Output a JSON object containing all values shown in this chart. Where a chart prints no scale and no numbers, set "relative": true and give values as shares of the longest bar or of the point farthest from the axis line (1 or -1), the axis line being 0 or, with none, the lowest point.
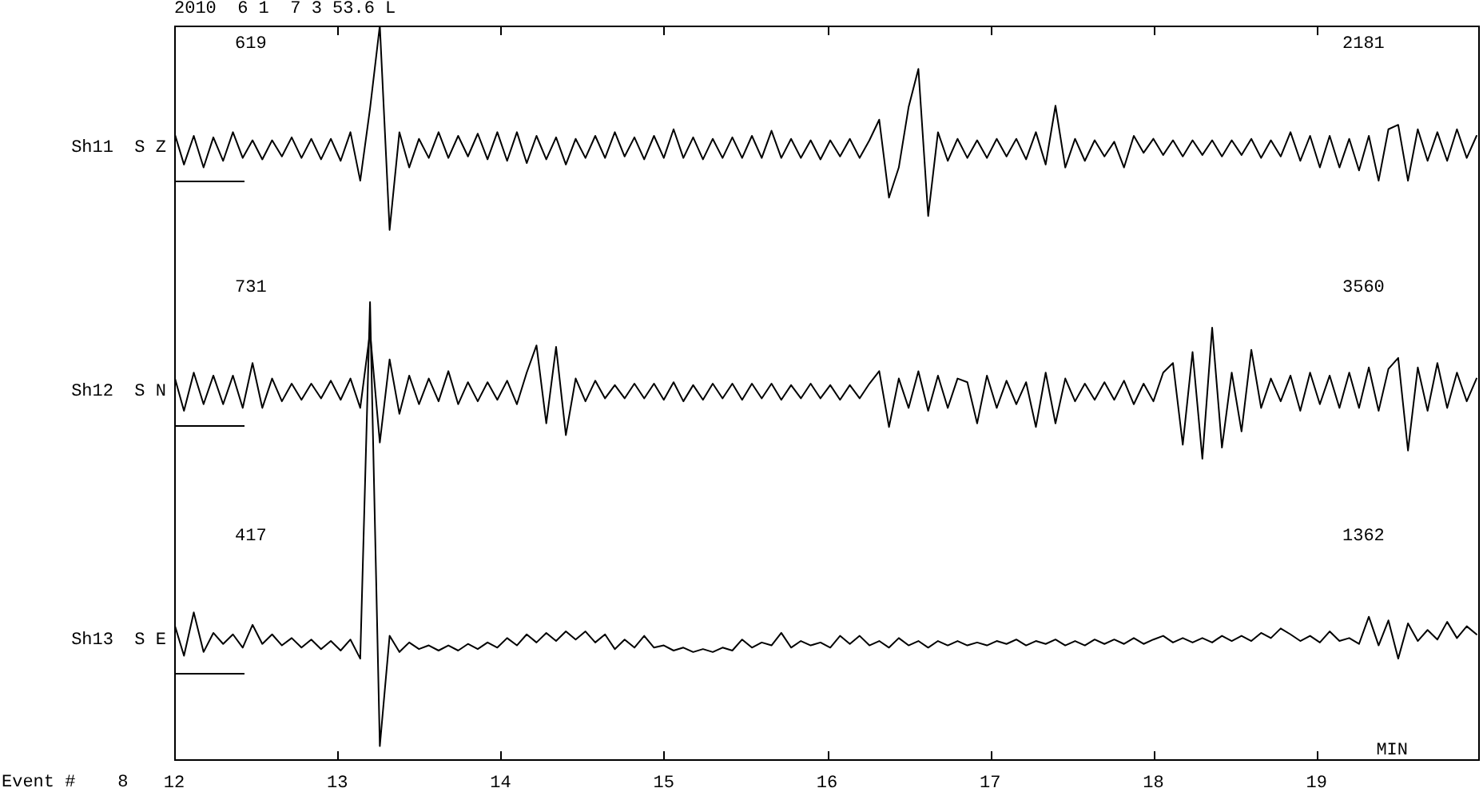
{
  "chart_data": {
    "type": "line",
    "title": "2010  6 1  7 3 53.6 L",
    "xlabel": "MIN",
    "relative": true,
    "marker": "none",
    "xlim": [
      12,
      20
    ],
    "xticks": [
      12,
      13,
      14,
      15,
      16,
      17,
      18,
      19
    ],
    "x": [
      12,
      12.06,
      12.12,
      12.18,
      12.24,
      12.3,
      12.36,
      12.42,
      12.48,
      12.54,
      12.6,
      12.66,
      12.72,
      12.78,
      12.84,
      12.9,
      12.96,
      13.02,
      13.08,
      13.14,
      13.2,
      13.26,
      13.32,
      13.38,
      13.44,
      13.5,
      13.56,
      13.62,
      13.68,
      13.74,
      13.8,
      13.86,
      13.92,
      13.98,
      14.04,
      14.1,
      14.16,
      14.22,
      14.28,
      14.34,
      14.4,
      14.46,
      14.52,
      14.58,
      14.64,
      14.7,
      14.76,
      14.82,
      14.88,
      14.94,
      15,
      15.06,
      15.12,
      15.18,
      15.24,
      15.3,
      15.36,
      15.42,
      15.48,
      15.54,
      15.6,
      15.66,
      15.72,
      15.78,
      15.84,
      15.9,
      15.96,
      16.02,
      16.08,
      16.14,
      16.2,
      16.26,
      16.32,
      16.38,
      16.44,
      16.5,
      16.56,
      16.62,
      16.68,
      16.74,
      16.8,
      16.86,
      16.92,
      16.98,
      17.04,
      17.1,
      17.16,
      17.22,
      17.28,
      17.34,
      17.4,
      17.46,
      17.52,
      17.58,
      17.64,
      17.7,
      17.76,
      17.82,
      17.88,
      17.94,
      18,
      18.06,
      18.12,
      18.18,
      18.24,
      18.3,
      18.36,
      18.42,
      18.48,
      18.54,
      18.6,
      18.66,
      18.72,
      18.78,
      18.84,
      18.9,
      18.96,
      19.02,
      19.08,
      19.14,
      19.2,
      19.26,
      19.32,
      19.38,
      19.44,
      19.5,
      19.56,
      19.62,
      19.68,
      19.74,
      19.8,
      19.86,
      19.92,
      19.98
    ],
    "series": [
      {
        "name": "Sh11  S Z",
        "color": "#000000",
        "values": [
          0.855,
          0.811,
          0.85,
          0.807,
          0.848,
          0.816,
          0.855,
          0.82,
          0.844,
          0.818,
          0.844,
          0.822,
          0.848,
          0.82,
          0.846,
          0.818,
          0.846,
          0.816,
          0.855,
          0.789,
          0.887,
          1,
          0.722,
          0.855,
          0.807,
          0.846,
          0.82,
          0.855,
          0.82,
          0.85,
          0.822,
          0.853,
          0.818,
          0.855,
          0.816,
          0.855,
          0.813,
          0.85,
          0.818,
          0.848,
          0.811,
          0.846,
          0.82,
          0.85,
          0.82,
          0.855,
          0.822,
          0.848,
          0.818,
          0.85,
          0.82,
          0.859,
          0.82,
          0.848,
          0.818,
          0.846,
          0.82,
          0.848,
          0.82,
          0.85,
          0.82,
          0.857,
          0.82,
          0.846,
          0.82,
          0.844,
          0.818,
          0.844,
          0.822,
          0.846,
          0.82,
          0.844,
          0.872,
          0.766,
          0.807,
          0.889,
          0.941,
          0.741,
          0.855,
          0.816,
          0.846,
          0.82,
          0.844,
          0.82,
          0.846,
          0.822,
          0.846,
          0.818,
          0.855,
          0.811,
          0.891,
          0.807,
          0.846,
          0.816,
          0.844,
          0.822,
          0.842,
          0.807,
          0.85,
          0.827,
          0.846,
          0.824,
          0.844,
          0.822,
          0.844,
          0.824,
          0.844,
          0.822,
          0.844,
          0.824,
          0.846,
          0.82,
          0.844,
          0.822,
          0.855,
          0.816,
          0.85,
          0.807,
          0.85,
          0.807,
          0.846,
          0.803,
          0.85,
          0.789,
          0.859,
          0.865,
          0.789,
          0.859,
          0.816,
          0.855,
          0.816,
          0.859,
          0.82,
          0.85
        ]
      },
      {
        "name": "Sh12  S N",
        "color": "#000000",
        "values": [
          0.524,
          0.476,
          0.528,
          0.485,
          0.524,
          0.485,
          0.524,
          0.48,
          0.541,
          0.48,
          0.52,
          0.489,
          0.513,
          0.491,
          0.513,
          0.493,
          0.517,
          0.491,
          0.52,
          0.48,
          0.583,
          0.433,
          0.546,
          0.472,
          0.524,
          0.485,
          0.52,
          0.489,
          0.53,
          0.485,
          0.515,
          0.489,
          0.515,
          0.491,
          0.517,
          0.485,
          0.528,
          0.565,
          0.459,
          0.563,
          0.443,
          0.52,
          0.489,
          0.517,
          0.493,
          0.511,
          0.493,
          0.513,
          0.493,
          0.513,
          0.491,
          0.515,
          0.489,
          0.511,
          0.491,
          0.513,
          0.493,
          0.513,
          0.491,
          0.513,
          0.493,
          0.513,
          0.491,
          0.511,
          0.493,
          0.513,
          0.493,
          0.511,
          0.491,
          0.511,
          0.493,
          0.513,
          0.53,
          0.454,
          0.52,
          0.48,
          0.53,
          0.476,
          0.524,
          0.48,
          0.52,
          0.515,
          0.459,
          0.524,
          0.48,
          0.517,
          0.485,
          0.515,
          0.454,
          0.528,
          0.459,
          0.52,
          0.489,
          0.513,
          0.491,
          0.515,
          0.491,
          0.517,
          0.485,
          0.513,
          0.489,
          0.528,
          0.541,
          0.43,
          0.556,
          0.411,
          0.589,
          0.426,
          0.528,
          0.448,
          0.559,
          0.48,
          0.52,
          0.489,
          0.524,
          0.476,
          0.528,
          0.485,
          0.524,
          0.48,
          0.528,
          0.48,
          0.535,
          0.476,
          0.533,
          0.548,
          0.422,
          0.535,
          0.476,
          0.541,
          0.48,
          0.528,
          0.489,
          0.52
        ]
      },
      {
        "name": "Sh13  S E",
        "color": "#000000",
        "values": [
          0.187,
          0.143,
          0.202,
          0.148,
          0.174,
          0.159,
          0.172,
          0.154,
          0.185,
          0.159,
          0.172,
          0.157,
          0.167,
          0.154,
          0.165,
          0.152,
          0.163,
          0.15,
          0.165,
          0.139,
          0.624,
          0.02,
          0.17,
          0.148,
          0.161,
          0.152,
          0.157,
          0.15,
          0.157,
          0.15,
          0.159,
          0.152,
          0.161,
          0.154,
          0.167,
          0.157,
          0.172,
          0.161,
          0.174,
          0.163,
          0.176,
          0.165,
          0.176,
          0.161,
          0.172,
          0.152,
          0.165,
          0.154,
          0.17,
          0.154,
          0.157,
          0.15,
          0.154,
          0.148,
          0.152,
          0.148,
          0.154,
          0.15,
          0.165,
          0.154,
          0.161,
          0.157,
          0.174,
          0.154,
          0.163,
          0.157,
          0.161,
          0.154,
          0.17,
          0.159,
          0.17,
          0.157,
          0.163,
          0.154,
          0.167,
          0.157,
          0.163,
          0.154,
          0.163,
          0.157,
          0.163,
          0.157,
          0.161,
          0.157,
          0.163,
          0.159,
          0.165,
          0.157,
          0.163,
          0.159,
          0.165,
          0.157,
          0.163,
          0.157,
          0.165,
          0.159,
          0.165,
          0.159,
          0.167,
          0.159,
          0.165,
          0.17,
          0.161,
          0.167,
          0.161,
          0.167,
          0.161,
          0.17,
          0.163,
          0.17,
          0.163,
          0.174,
          0.167,
          0.18,
          0.172,
          0.163,
          0.17,
          0.161,
          0.176,
          0.163,
          0.167,
          0.159,
          0.196,
          0.157,
          0.191,
          0.139,
          0.187,
          0.163,
          0.178,
          0.165,
          0.189,
          0.167,
          0.183,
          0.172
        ]
      }
    ],
    "annotations": [
      "619",
      "2181",
      "731",
      "3560",
      "417",
      "1362",
      "Event #    8"
    ]
  }
}
